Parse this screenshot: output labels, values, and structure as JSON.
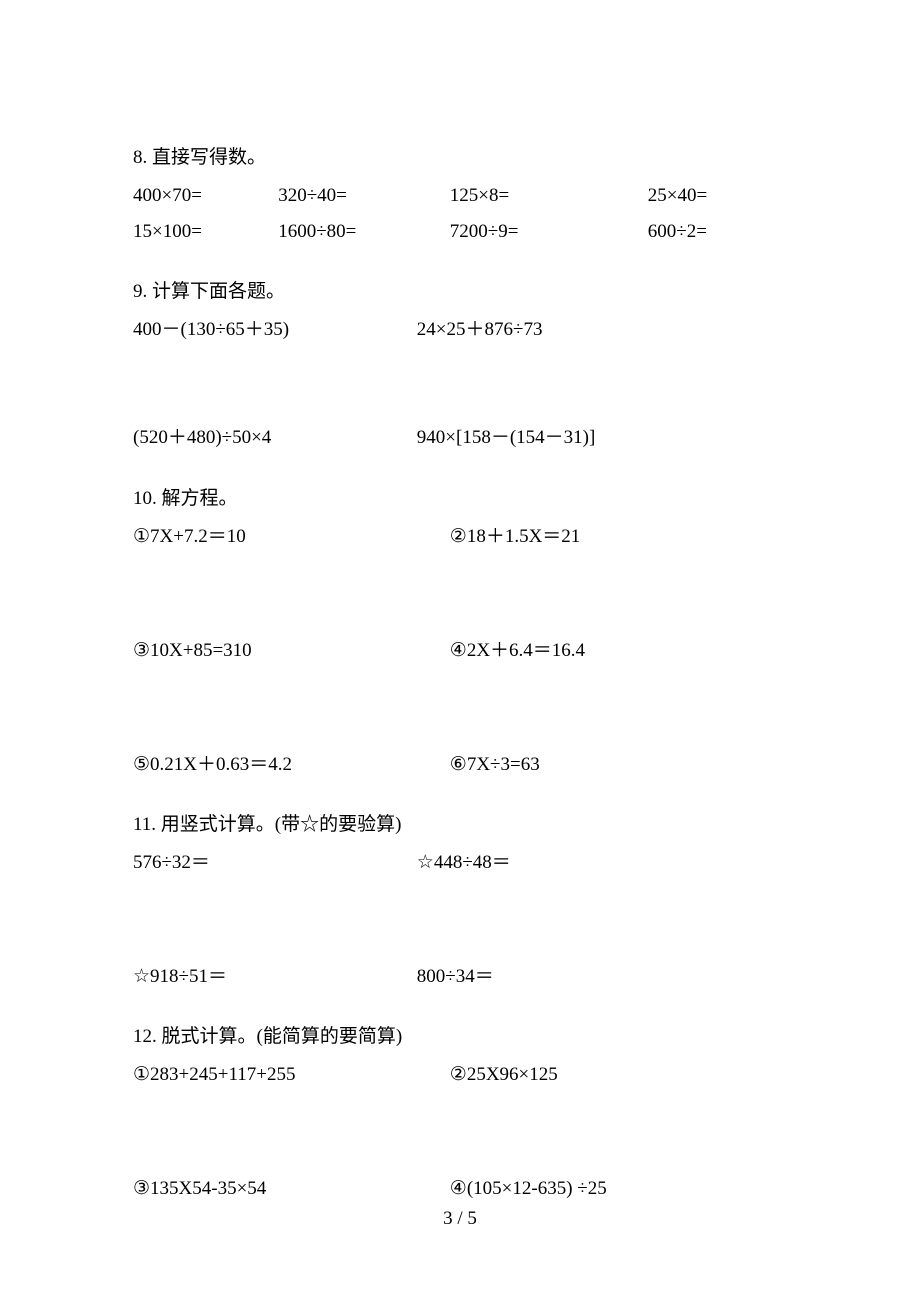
{
  "page": {
    "number": "3 / 5"
  },
  "q8": {
    "title": "8. 直接写得数。",
    "row1": [
      "400×70=",
      "320÷40=",
      "125×8=",
      "25×40="
    ],
    "row2": [
      "15×100=",
      "1600÷80=",
      "7200÷9=",
      "600÷2="
    ]
  },
  "q9": {
    "title": "9. 计算下面各题。",
    "row1": [
      "400－(130÷65＋35)",
      "24×25＋876÷73"
    ],
    "row2": [
      "(520＋480)÷50×4",
      "940×[158－(154－31)]"
    ]
  },
  "q10": {
    "title": "10. 解方程。",
    "row1": [
      "①7X+7.2＝10",
      "②18＋1.5X＝21"
    ],
    "row2": [
      "③10X+85=310",
      "④2X＋6.4＝16.4"
    ],
    "row3": [
      "⑤0.21X＋0.63＝4.2",
      "⑥7X÷3=63"
    ]
  },
  "q11": {
    "title": "11. 用竖式计算。(带☆的要验算)",
    "row1": [
      "576÷32＝",
      "☆448÷48＝"
    ],
    "row2": [
      "☆918÷51＝",
      "800÷34＝"
    ]
  },
  "q12": {
    "title": "12. 脱式计算。(能简算的要简算)",
    "row1": [
      "①283+245+117+255",
      "②25X96×125"
    ],
    "row2": [
      "③135X54-35×54",
      "④(105×12-635) ÷25"
    ]
  }
}
